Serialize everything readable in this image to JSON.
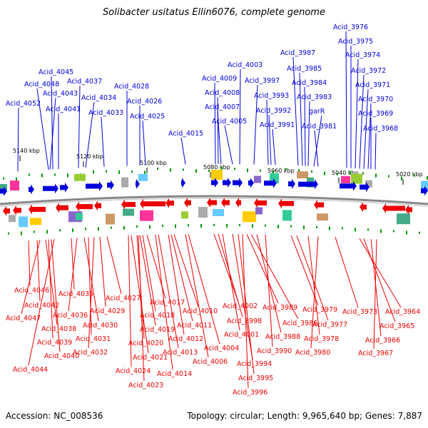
{
  "title": "Solibacter usitatus Ellin6076, complete genome",
  "footer": {
    "accession": "Accession: NC_008536",
    "summary": "Topology: circular; Length: 9,965,640 bp; Genes: 7,887"
  },
  "colors": {
    "forward": "#0000dd",
    "reverse": "#ee0000",
    "backbone": "#888888",
    "tick_marker": "#009900"
  },
  "scale_ticks": [
    "5140 kbp",
    "5120 kbp",
    "5100 kbp",
    "5080 kbp",
    "5060 kbp",
    "5040 kbp",
    "5020 kbp"
  ],
  "forward_genes": [
    "Acid_4052",
    "Acid_4048",
    "Acid_4045",
    "Acid_4043",
    "Acid_4041",
    "Acid_4037",
    "Acid_4034",
    "Acid_4033",
    "Acid_4028",
    "Acid_4026",
    "Acid_4025",
    "Acid_4015",
    "Acid_4009",
    "Acid_4008",
    "Acid_4007",
    "Acid_4005",
    "Acid_4003",
    "Acid_3997",
    "Acid_3993",
    "Acid_3992",
    "Acid_3991",
    "Acid_3987",
    "Acid_3985",
    "Acid_3984",
    "Acid_3983",
    "garR",
    "Acid_3981",
    "Acid_3976",
    "Acid_3975",
    "Acid_3974",
    "Acid_3972",
    "Acid_3971",
    "Acid_3970",
    "Acid_3969",
    "Acid_3968"
  ],
  "reverse_genes": [
    "Acid_4046",
    "Acid_4042",
    "Acid_4047",
    "Acid_4038",
    "Acid_4039",
    "Acid_4040",
    "Acid_4044",
    "Acid_4035",
    "Acid_4036",
    "Acid_4030",
    "Acid_4031",
    "Acid_4032",
    "Acid_4027",
    "Acid_4029",
    "Acid_4017",
    "Acid_4018",
    "Acid_4019",
    "Acid_4020",
    "Acid_4021",
    "Acid_4024",
    "Acid_4023",
    "Acid_4014",
    "Acid_4013",
    "Acid_4012",
    "Acid_4011",
    "Acid_4010",
    "Acid_4004",
    "Acid_4006",
    "Acid_4002",
    "Acid_3998",
    "Acid_4001",
    "Acid_3994",
    "Acid_3995",
    "Acid_3996",
    "Acid_3989",
    "Acid_3986",
    "Acid_3988",
    "Acid_3990",
    "Acid_3979",
    "Acid_3977",
    "Acid_3978",
    "Acid_3980",
    "Acid_3973",
    "Acid_3964",
    "Acid_3965",
    "Acid_3966",
    "Acid_3967"
  ]
}
